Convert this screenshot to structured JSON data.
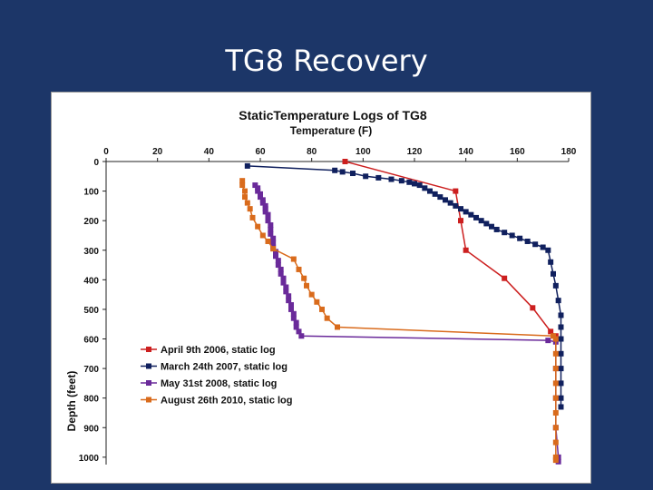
{
  "slide": {
    "title": "TG8 Recovery"
  },
  "chart_data": {
    "type": "line",
    "title": "StaticTemperature Logs of TG8",
    "xlabel": "Temperature (F)",
    "ylabel": "Depth (feet)",
    "xlim": [
      0,
      180
    ],
    "ylim": [
      0,
      1025
    ],
    "x_ticks": [
      0,
      20,
      40,
      60,
      80,
      100,
      120,
      140,
      160,
      180
    ],
    "y_ticks": [
      0,
      100,
      200,
      300,
      400,
      500,
      600,
      700,
      800,
      900,
      1000
    ],
    "x_axis_position": "top",
    "y_inverted": true,
    "grid": false,
    "legend_position": "bottom-left",
    "series": [
      {
        "name": "April 9th 2006, static log",
        "color": "#cc1f1f",
        "points": [
          [
            93,
            0
          ],
          [
            136,
            100
          ],
          [
            138,
            200
          ],
          [
            140,
            300
          ],
          [
            155,
            395
          ],
          [
            166,
            495
          ],
          [
            173,
            575
          ],
          [
            175,
            590
          ],
          [
            176,
            600
          ]
        ]
      },
      {
        "name": "March 24th 2007, static log",
        "color": "#10205e",
        "points": [
          [
            55,
            15
          ],
          [
            89,
            30
          ],
          [
            92,
            35
          ],
          [
            96,
            40
          ],
          [
            101,
            50
          ],
          [
            106,
            55
          ],
          [
            111,
            60
          ],
          [
            115,
            65
          ],
          [
            118,
            70
          ],
          [
            120,
            75
          ],
          [
            122,
            80
          ],
          [
            124,
            90
          ],
          [
            126,
            100
          ],
          [
            128,
            110
          ],
          [
            130,
            120
          ],
          [
            132,
            130
          ],
          [
            134,
            140
          ],
          [
            136,
            150
          ],
          [
            138,
            160
          ],
          [
            140,
            170
          ],
          [
            142,
            180
          ],
          [
            144,
            190
          ],
          [
            146,
            200
          ],
          [
            148,
            210
          ],
          [
            150,
            220
          ],
          [
            152,
            230
          ],
          [
            155,
            240
          ],
          [
            158,
            250
          ],
          [
            161,
            260
          ],
          [
            164,
            270
          ],
          [
            167,
            280
          ],
          [
            170,
            290
          ],
          [
            172,
            300
          ],
          [
            173,
            340
          ],
          [
            174,
            380
          ],
          [
            175,
            420
          ],
          [
            176,
            470
          ],
          [
            177,
            520
          ],
          [
            177,
            560
          ],
          [
            177,
            600
          ],
          [
            177,
            650
          ],
          [
            177,
            700
          ],
          [
            177,
            750
          ],
          [
            177,
            800
          ],
          [
            177,
            830
          ]
        ]
      },
      {
        "name": "May 31st 2008, static log",
        "color": "#6a2a9a",
        "points": [
          [
            58,
            80
          ],
          [
            59,
            90
          ],
          [
            59,
            100
          ],
          [
            60,
            110
          ],
          [
            60,
            120
          ],
          [
            61,
            130
          ],
          [
            61,
            140
          ],
          [
            62,
            150
          ],
          [
            62,
            160
          ],
          [
            62,
            170
          ],
          [
            63,
            180
          ],
          [
            63,
            190
          ],
          [
            63,
            200
          ],
          [
            64,
            215
          ],
          [
            64,
            230
          ],
          [
            64,
            245
          ],
          [
            65,
            260
          ],
          [
            65,
            275
          ],
          [
            65,
            290
          ],
          [
            66,
            305
          ],
          [
            66,
            320
          ],
          [
            67,
            335
          ],
          [
            67,
            350
          ],
          [
            68,
            365
          ],
          [
            68,
            380
          ],
          [
            69,
            395
          ],
          [
            69,
            410
          ],
          [
            70,
            425
          ],
          [
            70,
            440
          ],
          [
            71,
            455
          ],
          [
            71,
            470
          ],
          [
            72,
            485
          ],
          [
            72,
            500
          ],
          [
            73,
            515
          ],
          [
            73,
            530
          ],
          [
            74,
            545
          ],
          [
            74,
            560
          ],
          [
            75,
            575
          ],
          [
            76,
            590
          ],
          [
            172,
            605
          ],
          [
            175,
            610
          ],
          [
            175,
            700
          ],
          [
            175,
            800
          ],
          [
            175,
            900
          ],
          [
            176,
            1000
          ],
          [
            176,
            1015
          ]
        ]
      },
      {
        "name": "August 26th 2010, static log",
        "color": "#d96b1c",
        "points": [
          [
            53,
            65
          ],
          [
            53,
            80
          ],
          [
            54,
            100
          ],
          [
            54,
            120
          ],
          [
            55,
            140
          ],
          [
            56,
            160
          ],
          [
            57,
            190
          ],
          [
            59,
            220
          ],
          [
            61,
            250
          ],
          [
            63,
            270
          ],
          [
            65,
            295
          ],
          [
            73,
            330
          ],
          [
            75,
            365
          ],
          [
            77,
            395
          ],
          [
            78,
            420
          ],
          [
            80,
            450
          ],
          [
            82,
            475
          ],
          [
            84,
            500
          ],
          [
            86,
            530
          ],
          [
            90,
            560
          ],
          [
            174,
            590
          ],
          [
            175,
            600
          ],
          [
            175,
            650
          ],
          [
            175,
            700
          ],
          [
            175,
            750
          ],
          [
            175,
            800
          ],
          [
            175,
            850
          ],
          [
            175,
            900
          ],
          [
            175,
            950
          ],
          [
            175,
            1000
          ],
          [
            175,
            1010
          ]
        ]
      }
    ]
  }
}
